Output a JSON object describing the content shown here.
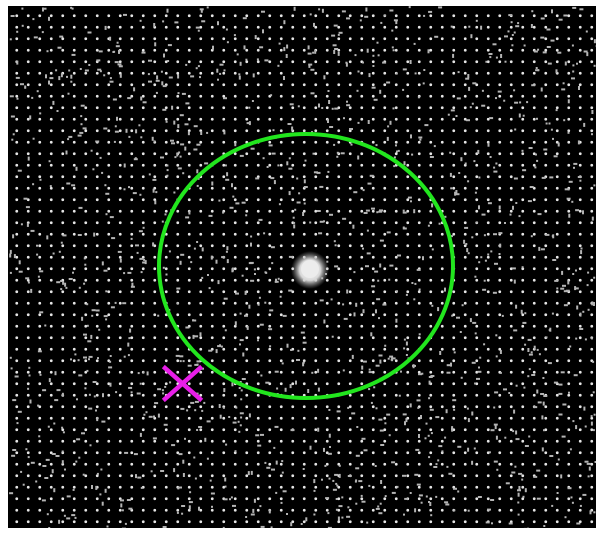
{
  "colors": {
    "background": "#000000",
    "grid_dot": "#e6e6e6",
    "noise_dot": "#b4b4b4",
    "circle": "#22e61e",
    "marker": "#e81ee8",
    "center_spot": "#e0e0e0"
  },
  "icons": {
    "target_circle": "green-circle-outline",
    "marker": "magenta-x-cross",
    "center": "bright-blob"
  }
}
